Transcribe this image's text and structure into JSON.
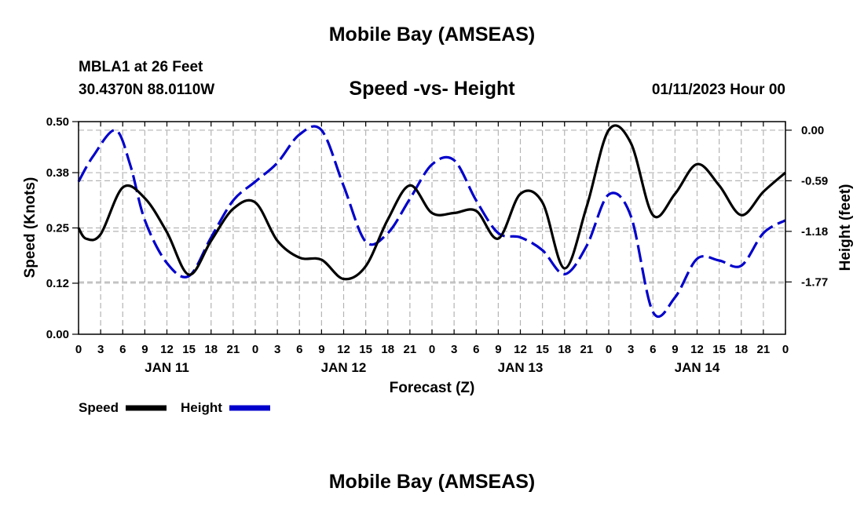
{
  "header": {
    "title": "Mobile Bay (AMSEAS)",
    "station": "MBLA1 at 26 Feet",
    "coords": "30.4370N  88.0110W",
    "subtitle": "Speed -vs- Height",
    "run_time": "01/11/2023 Hour 00"
  },
  "footer": {
    "next_title": "Mobile Bay (AMSEAS)"
  },
  "chart_data": {
    "type": "line",
    "title": "Speed -vs- Height",
    "xlabel": "Forecast (Z)",
    "ylabel": "Speed (Knots)",
    "y2label": "Height (feet)",
    "xlim": [
      0,
      96
    ],
    "ylim": [
      0,
      0.5
    ],
    "y2lim": [
      -2.38,
      0.1
    ],
    "x_ticks": [
      0,
      3,
      6,
      9,
      12,
      15,
      18,
      21,
      24,
      27,
      30,
      33,
      36,
      39,
      42,
      45,
      48,
      51,
      54,
      57,
      60,
      63,
      66,
      69,
      72,
      75,
      78,
      81,
      84,
      87,
      90,
      93,
      96
    ],
    "x_tick_labels": [
      "0",
      "3",
      "6",
      "9",
      "12",
      "15",
      "18",
      "21",
      "0",
      "3",
      "6",
      "9",
      "12",
      "15",
      "18",
      "21",
      "0",
      "3",
      "6",
      "9",
      "12",
      "15",
      "18",
      "21",
      "0",
      "3",
      "6",
      "9",
      "12",
      "15",
      "18",
      "21",
      "0"
    ],
    "date_labels": [
      {
        "x": 12,
        "label": "JAN 11"
      },
      {
        "x": 36,
        "label": "JAN 12"
      },
      {
        "x": 60,
        "label": "JAN 13"
      },
      {
        "x": 84,
        "label": "JAN 14"
      }
    ],
    "y_ticks": [
      0.0,
      0.12,
      0.25,
      0.38,
      0.5
    ],
    "y_tick_labels": [
      "0.00",
      "0.12",
      "0.25",
      "0.38",
      "0.50"
    ],
    "y2_ticks": [
      0.0,
      -0.59,
      -1.18,
      -1.77
    ],
    "y2_tick_labels": [
      "0.00",
      "-0.59",
      "-1.18",
      "-1.77"
    ],
    "grid": true,
    "legend_position": "bottom-left",
    "series": [
      {
        "name": "Speed",
        "axis": "left",
        "color": "#000000",
        "dash": "solid",
        "x": [
          0,
          1,
          3,
          6,
          9,
          12,
          15,
          18,
          21,
          24,
          27,
          30,
          33,
          36,
          39,
          42,
          45,
          48,
          51,
          54,
          57,
          60,
          63,
          66,
          69,
          72,
          75,
          78,
          81,
          84,
          87,
          90,
          93,
          96
        ],
        "values": [
          0.25,
          0.225,
          0.235,
          0.345,
          0.32,
          0.24,
          0.14,
          0.22,
          0.295,
          0.31,
          0.22,
          0.18,
          0.175,
          0.13,
          0.16,
          0.27,
          0.35,
          0.285,
          0.285,
          0.29,
          0.225,
          0.33,
          0.31,
          0.155,
          0.3,
          0.48,
          0.45,
          0.28,
          0.33,
          0.4,
          0.35,
          0.28,
          0.335,
          0.38
        ]
      },
      {
        "name": "Height",
        "axis": "right",
        "color": "#0000cc",
        "dash": "dashed",
        "x": [
          0,
          2,
          5,
          7,
          9,
          12,
          15,
          18,
          21,
          24,
          27,
          30,
          33,
          36,
          39,
          42,
          45,
          48,
          51,
          54,
          57,
          60,
          63,
          66,
          69,
          72,
          75,
          78,
          81,
          84,
          87,
          90,
          93,
          96
        ],
        "values": [
          -0.6,
          -0.3,
          0.0,
          -0.4,
          -1.05,
          -1.55,
          -1.7,
          -1.25,
          -0.82,
          -0.6,
          -0.38,
          -0.05,
          0.0,
          -0.65,
          -1.3,
          -1.2,
          -0.8,
          -0.4,
          -0.35,
          -0.82,
          -1.2,
          -1.25,
          -1.4,
          -1.68,
          -1.35,
          -0.75,
          -1.0,
          -2.12,
          -1.95,
          -1.5,
          -1.52,
          -1.58,
          -1.2,
          -1.05
        ]
      }
    ]
  },
  "legend": {
    "speed_label": "Speed",
    "height_label": "Height"
  }
}
